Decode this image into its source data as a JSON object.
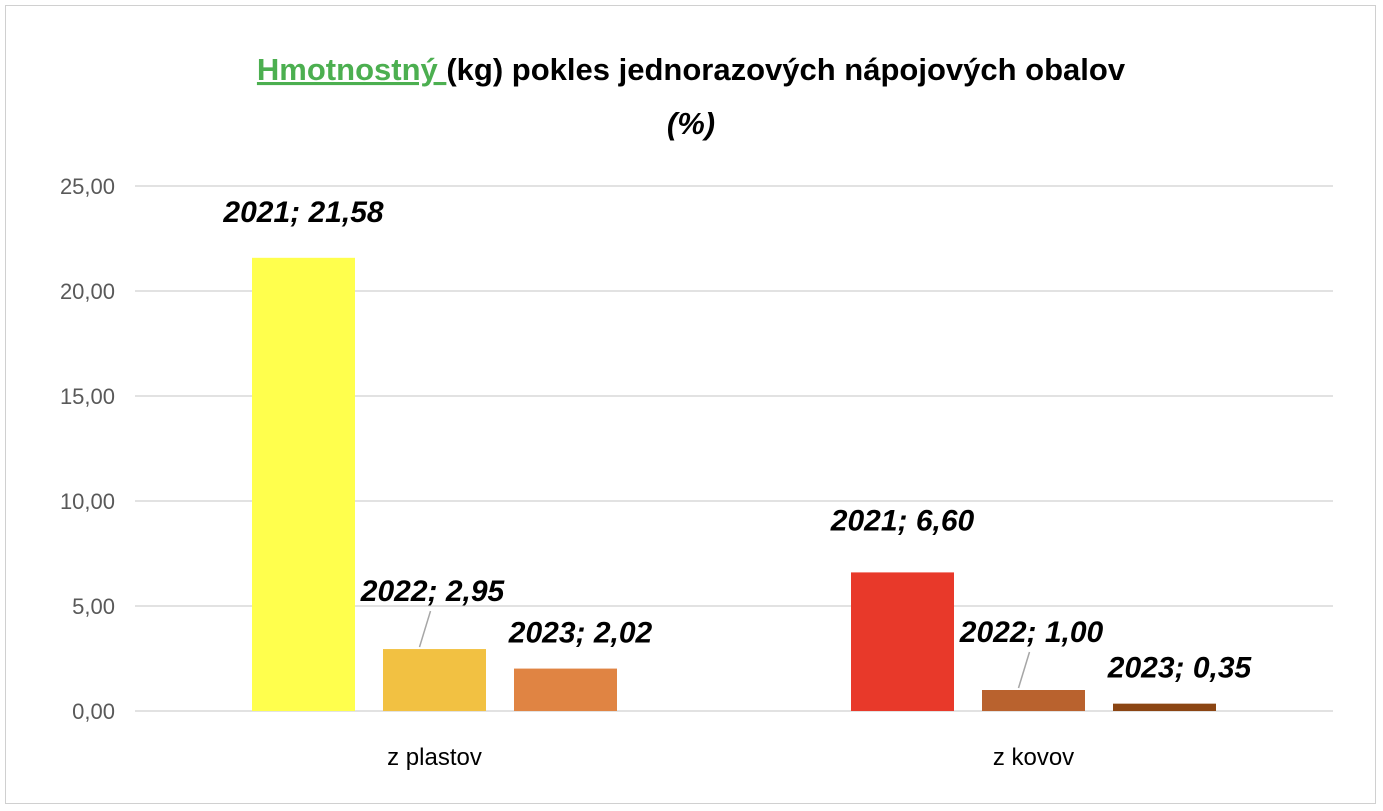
{
  "chart_data": {
    "type": "bar",
    "title_accent": "Hmotnostný ",
    "title_rest": "(kg) pokles jednorazových nápojových obalov",
    "subtitle": "(%)",
    "categories": [
      "z plastov",
      "z kovov"
    ],
    "ylim": [
      0,
      25
    ],
    "y_ticks": [
      "0,00",
      "5,00",
      "10,00",
      "15,00",
      "20,00",
      "25,00"
    ],
    "y_tick_values": [
      0,
      5,
      10,
      15,
      20,
      25
    ],
    "grid": true,
    "legend": "none",
    "series": [
      {
        "name": "2021",
        "values": [
          21.58,
          6.6
        ],
        "colors": [
          "#ffff4d",
          "#e8392a"
        ],
        "labels": [
          "2021; 21,58",
          "2021; 6,60"
        ]
      },
      {
        "name": "2022",
        "values": [
          2.95,
          1.0
        ],
        "colors": [
          "#f2c142",
          "#b9622e"
        ],
        "labels": [
          "2022; 2,95",
          "2022; 1,00"
        ]
      },
      {
        "name": "2023",
        "values": [
          2.02,
          0.35
        ],
        "colors": [
          "#e08443",
          "#8b4513"
        ],
        "labels": [
          "2023; 2,02",
          "2023; 0,35"
        ]
      }
    ]
  }
}
